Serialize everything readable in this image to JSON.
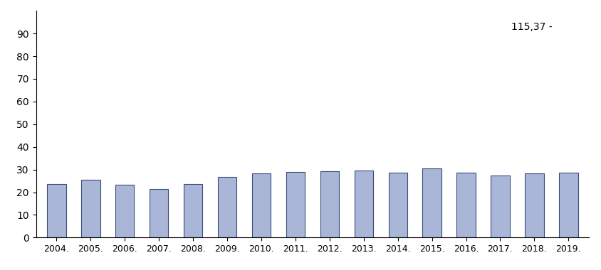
{
  "chart_data": {
    "type": "bar",
    "categories": [
      "2004.",
      "2005.",
      "2006.",
      "2007.",
      "2008.",
      "2009.",
      "2010.",
      "2011.",
      "2012.",
      "2013.",
      "2014.",
      "2015.",
      "2016.",
      "2017.",
      "2018.",
      "2019."
    ],
    "values": [
      23.6,
      25.5,
      23.3,
      21.5,
      23.6,
      26.7,
      28.2,
      29.0,
      29.4,
      29.7,
      28.5,
      30.6,
      28.5,
      27.3,
      28.2,
      28.5
    ],
    "color": "#a9b6d8",
    "ylim": [
      0,
      100
    ],
    "yticks": [
      0,
      10,
      20,
      30,
      40,
      50,
      60,
      70,
      80,
      90
    ],
    "grid": false,
    "annotation": "115,37 -"
  }
}
